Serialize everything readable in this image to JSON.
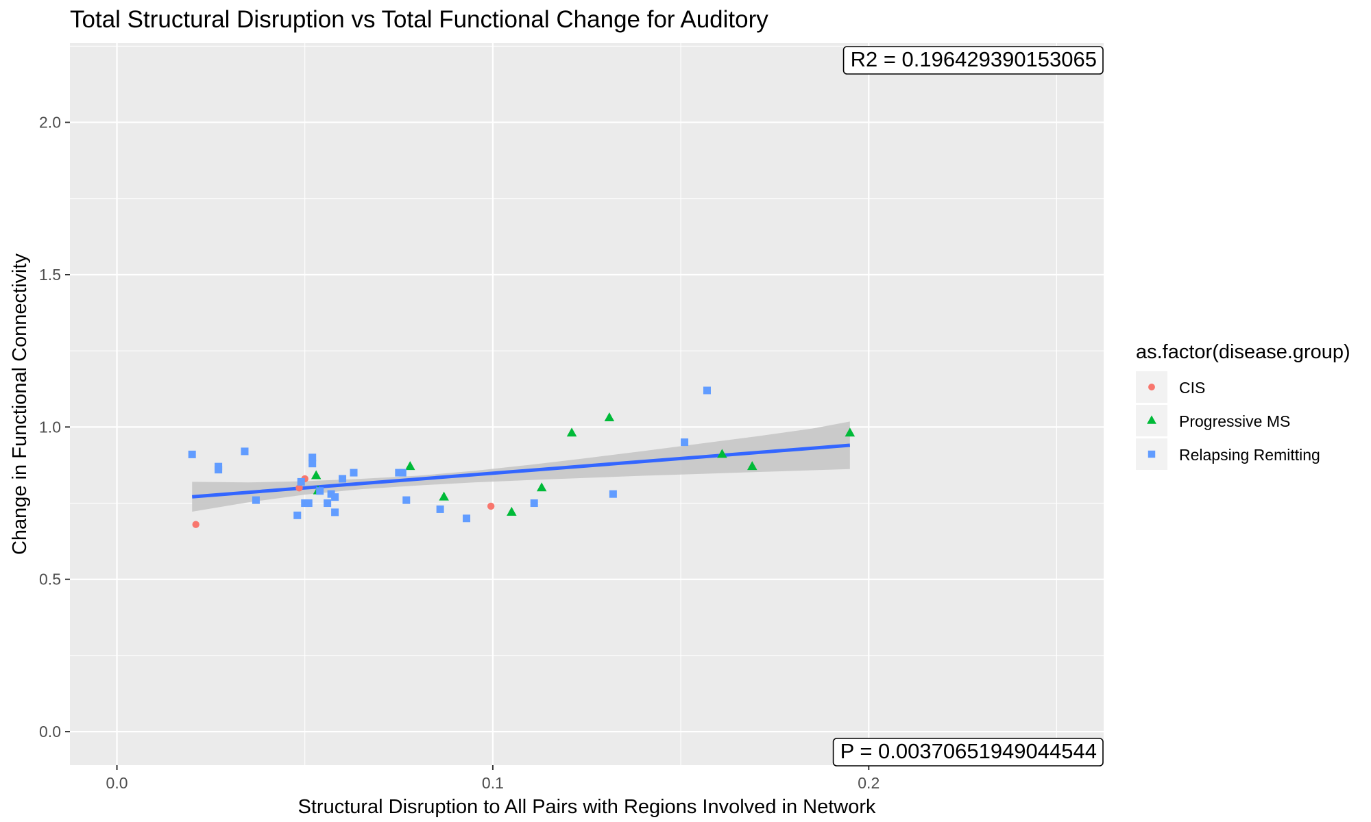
{
  "chart_data": {
    "type": "scatter",
    "title": "Total Structural Disruption vs Total Functional Change for Auditory",
    "xlabel": "Structural Disruption to All Pairs with Regions Involved in Network",
    "ylabel": "Change in Functional Connectivity",
    "xlim": [
      -0.0125,
      0.2625
    ],
    "ylim": [
      -0.11,
      2.26
    ],
    "x_ticks": [
      0.0,
      0.1,
      0.2
    ],
    "x_tick_labels": [
      "0.0",
      "0.1",
      "0.2"
    ],
    "y_ticks": [
      0.0,
      0.5,
      1.0,
      1.5,
      2.0
    ],
    "y_tick_labels": [
      "0.0",
      "0.5",
      "1.0",
      "1.5",
      "2.0"
    ],
    "grid": true,
    "legend_position": "right",
    "legend_title": "as.factor(disease.group)",
    "series": [
      {
        "name": "CIS",
        "color": "#F8766D",
        "shape": "circle",
        "points": [
          [
            0.021,
            0.68
          ],
          [
            0.05,
            0.83
          ],
          [
            0.0485,
            0.8
          ],
          [
            0.0995,
            0.74
          ]
        ]
      },
      {
        "name": "Progressive MS",
        "color": "#00BA38",
        "shape": "triangle",
        "points": [
          [
            0.053,
            0.84
          ],
          [
            0.0535,
            0.79
          ],
          [
            0.078,
            0.87
          ],
          [
            0.087,
            0.77
          ],
          [
            0.105,
            0.72
          ],
          [
            0.113,
            0.8
          ],
          [
            0.121,
            0.98
          ],
          [
            0.131,
            1.03
          ],
          [
            0.161,
            0.91
          ],
          [
            0.169,
            0.87
          ],
          [
            0.195,
            0.98
          ]
        ]
      },
      {
        "name": "Relapsing Remitting",
        "color": "#619CFF",
        "shape": "square",
        "points": [
          [
            0.02,
            0.91
          ],
          [
            0.027,
            0.87
          ],
          [
            0.027,
            0.86
          ],
          [
            0.034,
            0.92
          ],
          [
            0.037,
            0.76
          ],
          [
            0.048,
            0.71
          ],
          [
            0.049,
            0.82
          ],
          [
            0.05,
            0.75
          ],
          [
            0.051,
            0.75
          ],
          [
            0.052,
            0.9
          ],
          [
            0.052,
            0.88
          ],
          [
            0.054,
            0.79
          ],
          [
            0.056,
            0.75
          ],
          [
            0.057,
            0.78
          ],
          [
            0.058,
            0.77
          ],
          [
            0.058,
            0.72
          ],
          [
            0.06,
            0.83
          ],
          [
            0.063,
            0.85
          ],
          [
            0.075,
            0.85
          ],
          [
            0.076,
            0.85
          ],
          [
            0.077,
            0.76
          ],
          [
            0.086,
            0.73
          ],
          [
            0.093,
            0.7
          ],
          [
            0.111,
            0.75
          ],
          [
            0.132,
            0.78
          ],
          [
            0.151,
            0.95
          ],
          [
            0.157,
            1.12
          ]
        ]
      }
    ],
    "fit_line": {
      "color": "#3366FF",
      "x": [
        0.02,
        0.195
      ],
      "y": [
        0.771,
        0.94
      ]
    },
    "confidence_band": {
      "color": "#C4C4C4",
      "x": [
        0.02,
        0.035,
        0.05,
        0.065,
        0.08,
        0.095,
        0.11,
        0.125,
        0.14,
        0.155,
        0.17,
        0.185,
        0.195
      ],
      "lower": [
        0.722,
        0.753,
        0.778,
        0.796,
        0.808,
        0.818,
        0.826,
        0.833,
        0.84,
        0.846,
        0.852,
        0.858,
        0.862
      ],
      "upper": [
        0.82,
        0.818,
        0.822,
        0.83,
        0.84,
        0.856,
        0.876,
        0.898,
        0.921,
        0.945,
        0.969,
        0.995,
        1.018
      ]
    },
    "annotations": [
      {
        "label": "R2 =  0.196429390153065",
        "position": "top-right"
      },
      {
        "label": "P =  0.00370651949044544",
        "position": "bottom-right"
      }
    ]
  }
}
